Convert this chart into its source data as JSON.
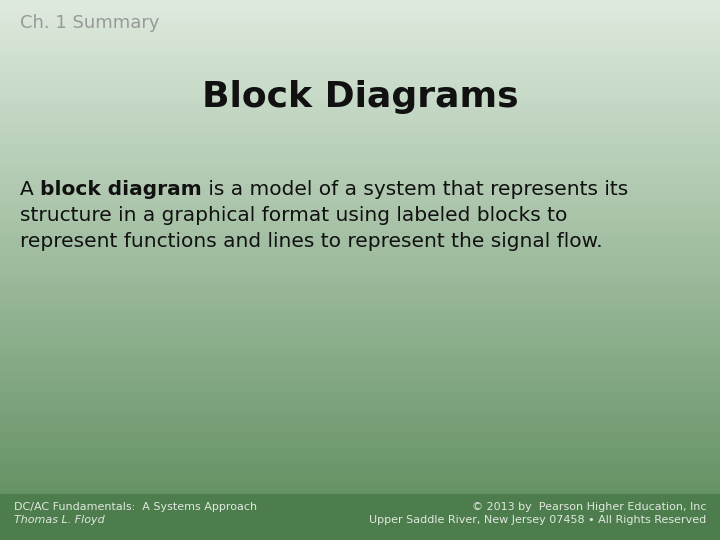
{
  "chapter_label": "Ch. 1 Summary",
  "title": "Block Diagrams",
  "line1_pre": "A ",
  "line1_bold": "block diagram",
  "line1_post": " is a model of a system that represents its",
  "line2": "structure in a graphical format using labeled blocks to",
  "line3": "represent functions and lines to represent the signal flow.",
  "footer_left_line1": "DC/AC Fundamentals:  A Systems Approach",
  "footer_left_line2": "Thomas L. Floyd",
  "footer_right_line1": "© 2013 by  Pearson Higher Education, Inc",
  "footer_right_line2": "Upper Saddle River, New Jersey 07458 • All Rights Reserved",
  "bg_color_top": "#deeade",
  "bg_color_bottom": "#5a8a5a",
  "footer_bg_color": "#4d7d4d",
  "chapter_label_color": "#999999",
  "title_color": "#111111",
  "body_color": "#111111",
  "footer_text_color": "#e0e8e0",
  "body_fontsize": 14.5,
  "title_fontsize": 26,
  "chapter_fontsize": 13,
  "footer_fontsize": 8
}
